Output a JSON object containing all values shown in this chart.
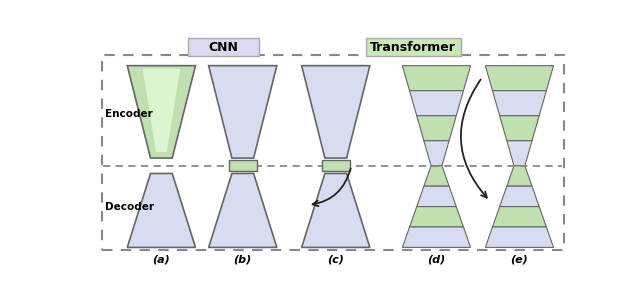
{
  "bg_color": "#ffffff",
  "cnn_box": {
    "label": "CNN",
    "color": "#ddd8f0",
    "edge": "#aaaaaa"
  },
  "trans_box": {
    "label": "Transformer",
    "color": "#c8e8b8",
    "edge": "#aaaaaa"
  },
  "encoder_label": "Encoder",
  "decoder_label": "Decoder",
  "sublabels": [
    "(a)",
    "(b)",
    "(c)",
    "(d)",
    "(e)"
  ],
  "purple_fill": "#d8dcf0",
  "green_fill": "#c0e0b0",
  "edge_color": "#666666",
  "arrow_color": "#222222",
  "dot_line_color": "#888888"
}
